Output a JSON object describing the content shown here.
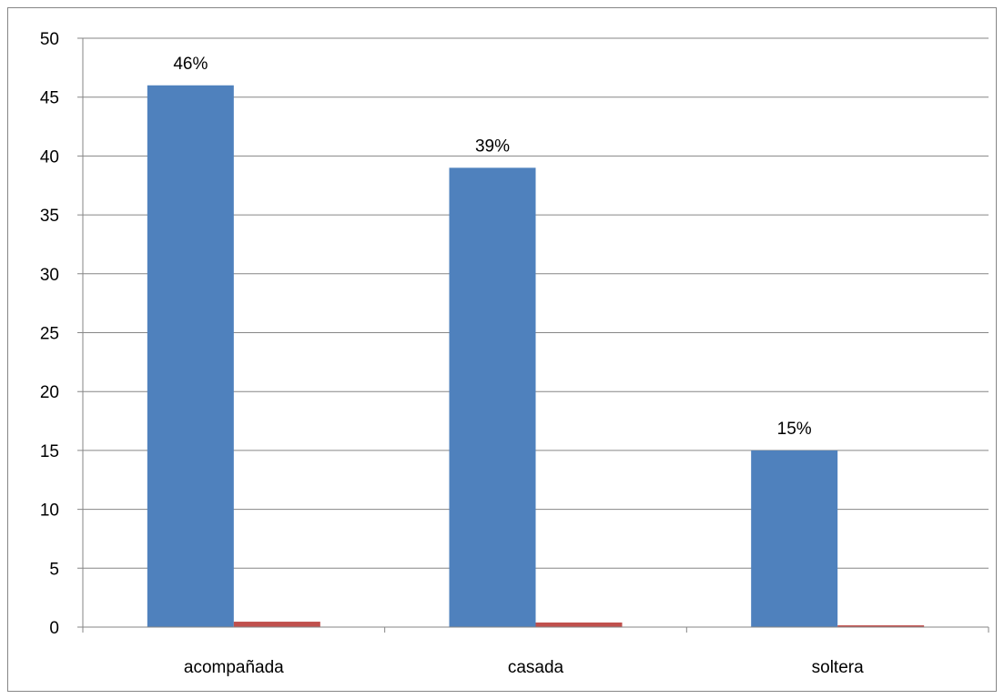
{
  "chart_data": {
    "type": "bar",
    "categories": [
      "acompañada",
      "casada",
      "soltera"
    ],
    "series": [
      {
        "values": [
          46,
          39,
          15
        ],
        "color": "#4f81bd",
        "data_labels": [
          "46%",
          "39%",
          "15%"
        ]
      },
      {
        "values": [
          0.46,
          0.39,
          0.15
        ],
        "color": "#c0504d"
      }
    ],
    "title": "",
    "xlabel": "",
    "ylabel": "",
    "ylim": [
      0,
      50
    ],
    "yticks": [
      0,
      5,
      10,
      15,
      20,
      25,
      30,
      35,
      40,
      45,
      50
    ],
    "grid": true,
    "legend": "none",
    "colors": {
      "gridline": "#868686",
      "axis": "#868686",
      "border": "#868686"
    }
  }
}
